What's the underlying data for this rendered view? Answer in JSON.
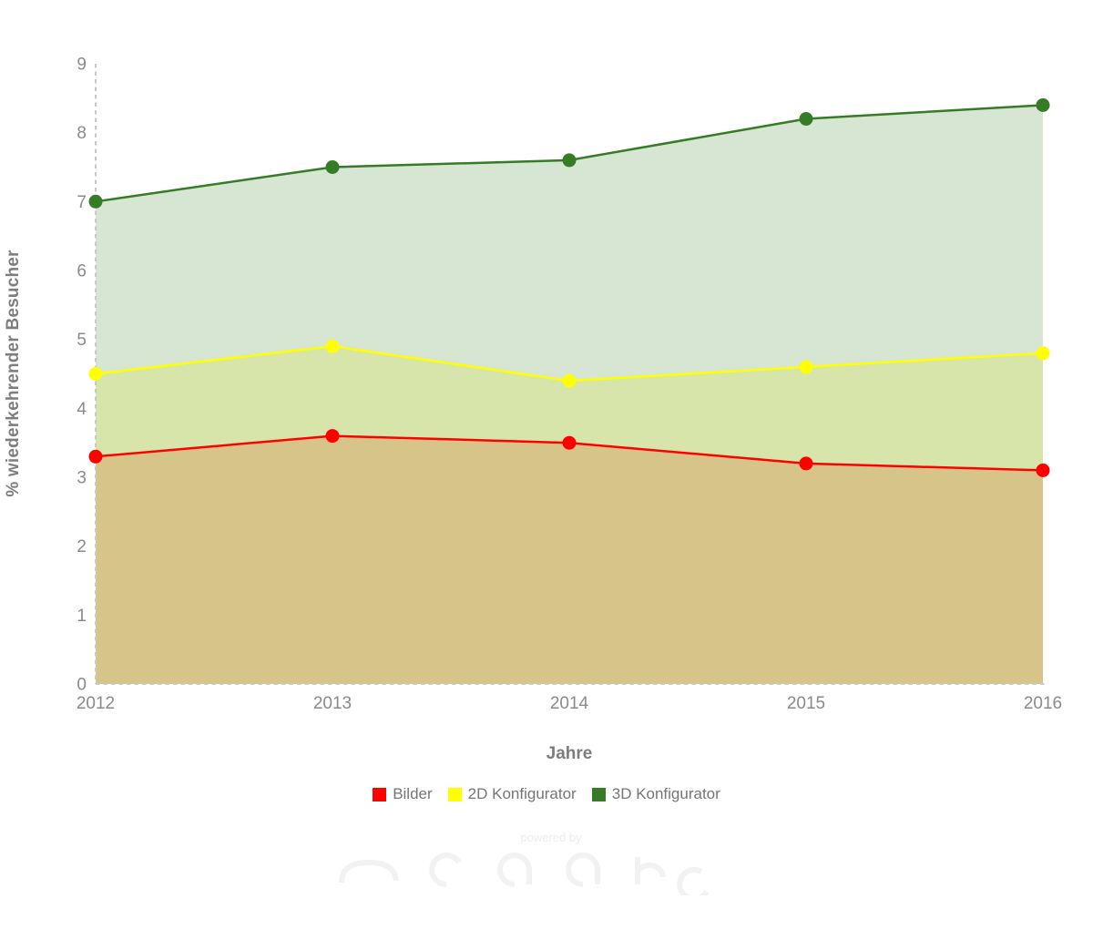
{
  "watermark": {
    "powered_by": "powered by"
  },
  "chart_data": {
    "type": "area",
    "x": [
      "2012",
      "2013",
      "2014",
      "2015",
      "2016"
    ],
    "xlabel": "Jahre",
    "ylabel": "% wiederkehrender Besucher",
    "ylim": [
      0,
      9
    ],
    "yticks": [
      0,
      1,
      2,
      3,
      4,
      5,
      6,
      7,
      8,
      9
    ],
    "grid": false,
    "legend_position": "bottom",
    "fill_opacity": 0.2,
    "marker_radius": 7.5,
    "line_width": 2.5,
    "axis_style": "dashed",
    "axis_color": "#c8c8c8",
    "tick_label_color": "#8a8a8a",
    "title_color": "#7d7d7d",
    "legend_text_color": "#757575",
    "series": [
      {
        "name": "Bilder",
        "color": "#ff0000",
        "values": [
          3.3,
          3.6,
          3.5,
          3.2,
          3.1
        ]
      },
      {
        "name": "2D Konfigurator",
        "color": "#ffff00",
        "values": [
          4.5,
          4.9,
          4.4,
          4.6,
          4.8
        ]
      },
      {
        "name": "3D Konfigurator",
        "color": "#367b25",
        "values": [
          7.0,
          7.5,
          7.6,
          8.2,
          8.4
        ]
      }
    ]
  }
}
